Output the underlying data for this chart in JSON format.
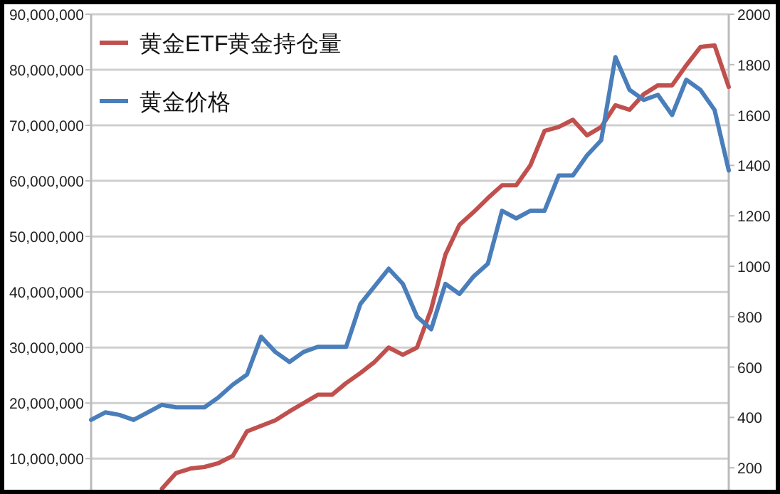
{
  "chart_data": {
    "type": "line",
    "categories": [
      null,
      null,
      null,
      null,
      null,
      null,
      null,
      null,
      null,
      null,
      null,
      null,
      null,
      null,
      null,
      null,
      null,
      null,
      null,
      null,
      null,
      null,
      null,
      null,
      null,
      null,
      null,
      null,
      null,
      null,
      null,
      null,
      null,
      null,
      null,
      null,
      null,
      null,
      null,
      null,
      null,
      null,
      null,
      null,
      null,
      null
    ],
    "series": [
      {
        "name": "黄金ETF黄金持仓量",
        "color": "#c0504d",
        "values": [
          null,
          null,
          null,
          null,
          null,
          4600000,
          7400000,
          8200000,
          8500000,
          9200000,
          10500000,
          14900000,
          15900000,
          16900000,
          18500000,
          20000000,
          21500000,
          21500000,
          23600000,
          25400000,
          27400000,
          30000000,
          28700000,
          30000000,
          36900000,
          46700000,
          52100000,
          54400000,
          56900000,
          59200000,
          59200000,
          62800000,
          69000000,
          69700000,
          71000000,
          68200000,
          69700000,
          73600000,
          72800000,
          75600000,
          77200000,
          77200000,
          80800000,
          84100000,
          84400000,
          76900000
        ]
      },
      {
        "name": "黄金价格",
        "color": "#4a7ebb",
        "axis": "y2",
        "values": [
          390,
          420,
          410,
          390,
          420,
          450,
          440,
          440,
          440,
          480,
          530,
          570,
          720,
          660,
          620,
          660,
          680,
          680,
          680,
          850,
          920,
          990,
          930,
          800,
          750,
          930,
          890,
          960,
          1010,
          1220,
          1190,
          1220,
          1220,
          1360,
          1360,
          1440,
          1500,
          1830,
          1700,
          1660,
          1680,
          1600,
          1740,
          1700,
          1620,
          1380
        ]
      }
    ],
    "ylim": [
      4400000,
      90000000
    ],
    "yticks": [
      {
        "value": 10000000,
        "label": "10,000,000"
      },
      {
        "value": 20000000,
        "label": "20,000,000"
      },
      {
        "value": 30000000,
        "label": "30,000,000"
      },
      {
        "value": 40000000,
        "label": "40,000,000"
      },
      {
        "value": 50000000,
        "label": "50,000,000"
      },
      {
        "value": 60000000,
        "label": "60,000,000"
      },
      {
        "value": 70000000,
        "label": "70,000,000"
      },
      {
        "value": 80000000,
        "label": "80,000,000"
      },
      {
        "value": 90000000,
        "label": "90,000,000"
      }
    ],
    "y2lim": [
      113,
      2000
    ],
    "y2ticks": [
      200,
      400,
      600,
      800,
      1000,
      1200,
      1400,
      1600,
      1800,
      2000
    ],
    "grid": "y",
    "legend": "top left",
    "marker": "none",
    "line_style": "solid"
  }
}
